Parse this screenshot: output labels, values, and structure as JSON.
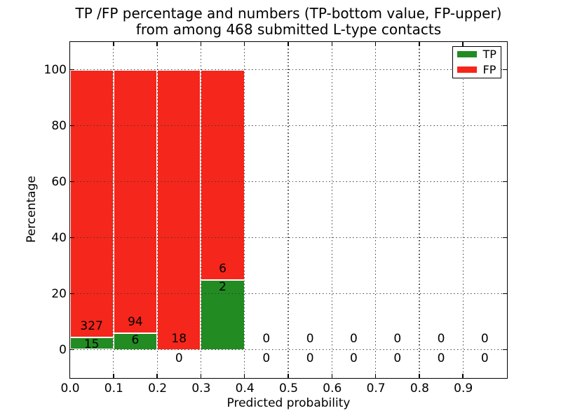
{
  "figure": {
    "title_line1": "TP /FP percentage and numbers (TP-bottom value, FP-upper)",
    "title_line2": "from among 468 submitted L-type contacts"
  },
  "chart_data": {
    "type": "bar",
    "stacked": true,
    "normalized_to_percent": true,
    "title": "TP /FP percentage and numbers (TP-bottom value, FP-upper)\nfrom among 468 submitted L-type contacts",
    "xlabel": "Predicted probability",
    "ylabel": "Percentage",
    "xlim": [
      0.0,
      1.0
    ],
    "ylim": [
      -10,
      110
    ],
    "x_ticks": [
      0.0,
      0.1,
      0.2,
      0.3,
      0.4,
      0.5,
      0.6,
      0.7,
      0.8,
      0.9
    ],
    "x_tick_labels": [
      "0.0",
      "0.1",
      "0.2",
      "0.3",
      "0.4",
      "0.5",
      "0.6",
      "0.7",
      "0.8",
      "0.9"
    ],
    "y_ticks": [
      0,
      20,
      40,
      60,
      80,
      100
    ],
    "y_tick_labels": [
      "0",
      "20",
      "40",
      "60",
      "80",
      "100"
    ],
    "grid": {
      "visible": true,
      "style": "dotted",
      "drawn_above_bars": true
    },
    "legend": {
      "position": "upper right",
      "entries": [
        {
          "label": "TP",
          "color": "#228B22"
        },
        {
          "label": "FP",
          "color": "#F5261B"
        }
      ]
    },
    "total_contacts": 468,
    "bin_width": 0.1,
    "bins": [
      {
        "range": [
          0.0,
          0.1
        ],
        "tp": 15,
        "fp": 327,
        "tp_pct": 4.39,
        "fp_pct": 95.61
      },
      {
        "range": [
          0.1,
          0.2
        ],
        "tp": 6,
        "fp": 94,
        "tp_pct": 6.0,
        "fp_pct": 94.0
      },
      {
        "range": [
          0.2,
          0.3
        ],
        "tp": 0,
        "fp": 18,
        "tp_pct": 0.0,
        "fp_pct": 100.0
      },
      {
        "range": [
          0.3,
          0.4
        ],
        "tp": 2,
        "fp": 6,
        "tp_pct": 25.0,
        "fp_pct": 75.0
      },
      {
        "range": [
          0.4,
          0.5
        ],
        "tp": 0,
        "fp": 0,
        "tp_pct": 0.0,
        "fp_pct": 0.0
      },
      {
        "range": [
          0.5,
          0.6
        ],
        "tp": 0,
        "fp": 0,
        "tp_pct": 0.0,
        "fp_pct": 0.0
      },
      {
        "range": [
          0.6,
          0.7
        ],
        "tp": 0,
        "fp": 0,
        "tp_pct": 0.0,
        "fp_pct": 0.0
      },
      {
        "range": [
          0.7,
          0.8
        ],
        "tp": 0,
        "fp": 0,
        "tp_pct": 0.0,
        "fp_pct": 0.0
      },
      {
        "range": [
          0.8,
          0.9
        ],
        "tp": 0,
        "fp": 0,
        "tp_pct": 0.0,
        "fp_pct": 0.0
      },
      {
        "range": [
          0.9,
          1.0
        ],
        "tp": 0,
        "fp": 0,
        "tp_pct": 0.0,
        "fp_pct": 0.0
      }
    ],
    "bar_edge_color": "#ffffff"
  }
}
